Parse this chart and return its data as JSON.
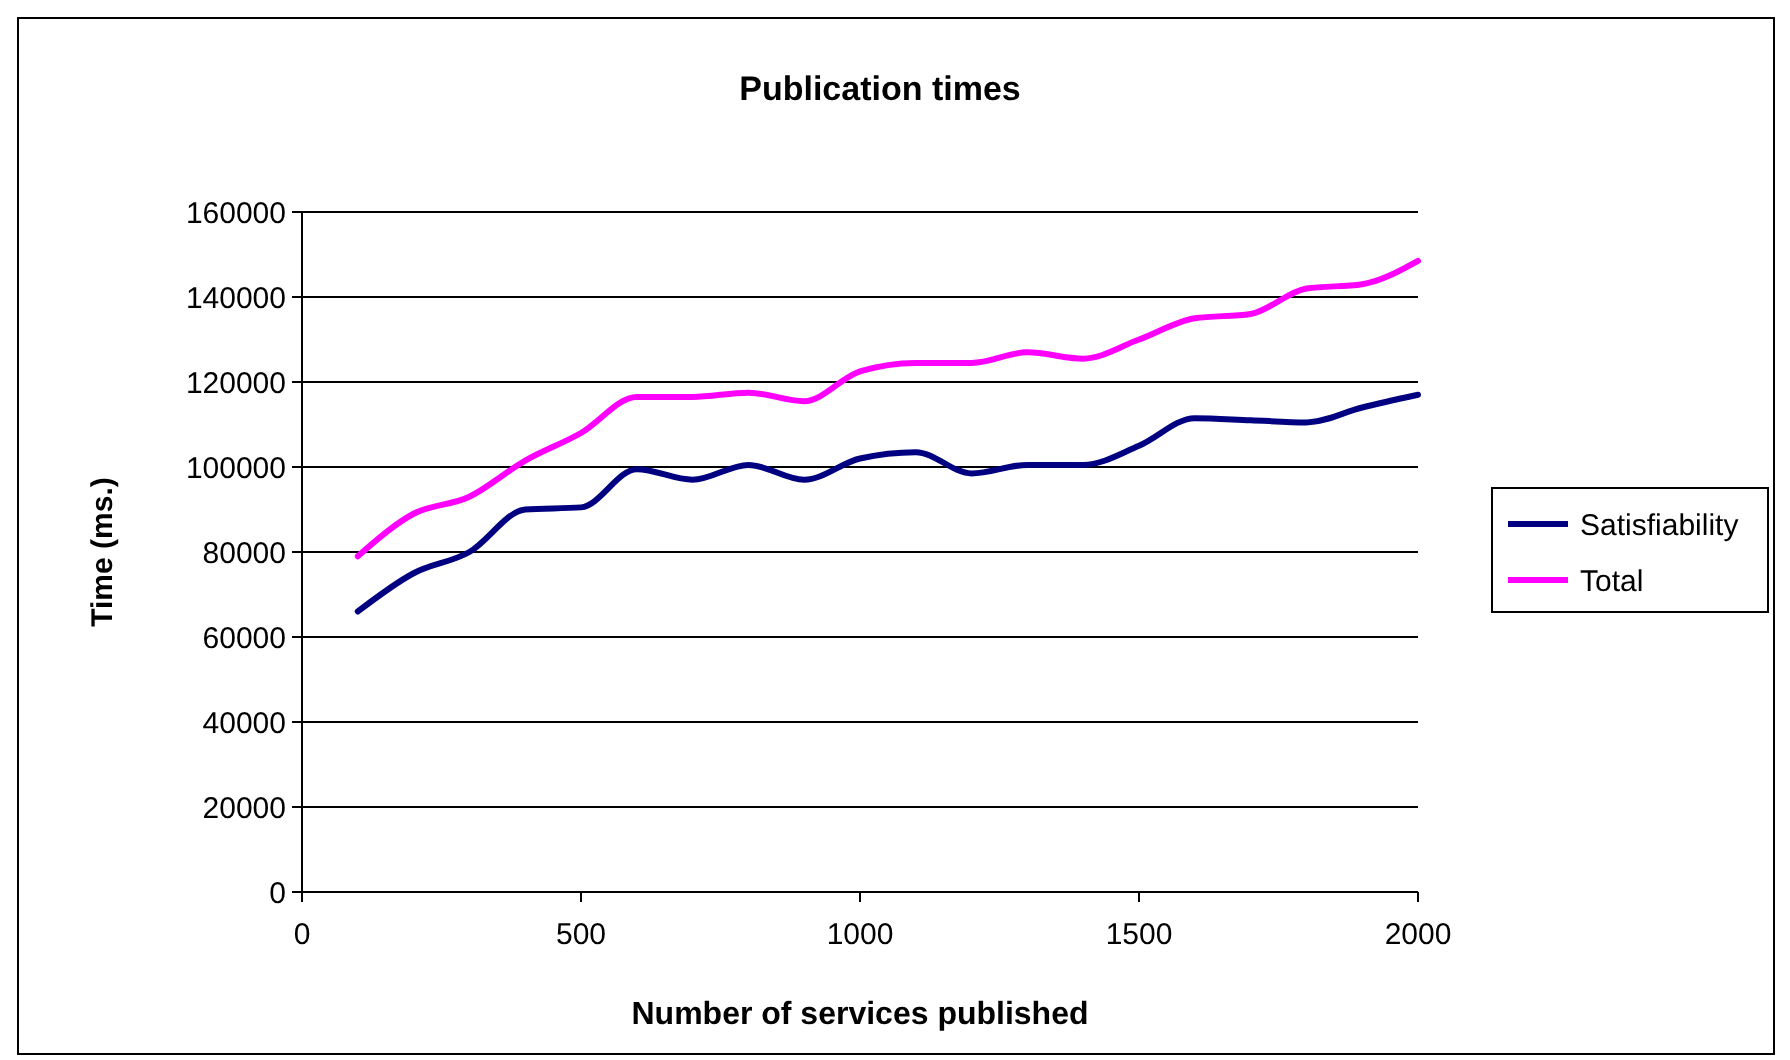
{
  "chart_data": {
    "type": "line",
    "title": "Publication times",
    "xlabel": "Number of services published",
    "ylabel": "Time (ms.)",
    "x": [
      100,
      200,
      300,
      400,
      500,
      600,
      700,
      800,
      900,
      1000,
      1100,
      1200,
      1300,
      1400,
      1500,
      1600,
      1700,
      1800,
      1900,
      2000
    ],
    "series": [
      {
        "name": "Satisfiability",
        "color": "#000080",
        "values": [
          66000,
          75000,
          80000,
          90000,
          90500,
          99500,
          97000,
          100500,
          97000,
          102000,
          103500,
          98500,
          100500,
          100500,
          105000,
          111500,
          111000,
          110500,
          114000,
          117000
        ]
      },
      {
        "name": "Total",
        "color": "#ff00ff",
        "values": [
          79000,
          89000,
          93000,
          101500,
          108000,
          116500,
          116500,
          117500,
          115500,
          122500,
          124500,
          124500,
          127000,
          125500,
          130000,
          135000,
          136000,
          142000,
          143000,
          148500
        ]
      }
    ],
    "xlim": [
      0,
      2000
    ],
    "xticks": [
      0,
      500,
      1000,
      1500,
      2000
    ],
    "ylim": [
      0,
      160000
    ],
    "yticks": [
      0,
      20000,
      40000,
      60000,
      80000,
      100000,
      120000,
      140000,
      160000
    ],
    "grid": "y",
    "legend": "right",
    "marker": "none",
    "line_style": "solid"
  }
}
